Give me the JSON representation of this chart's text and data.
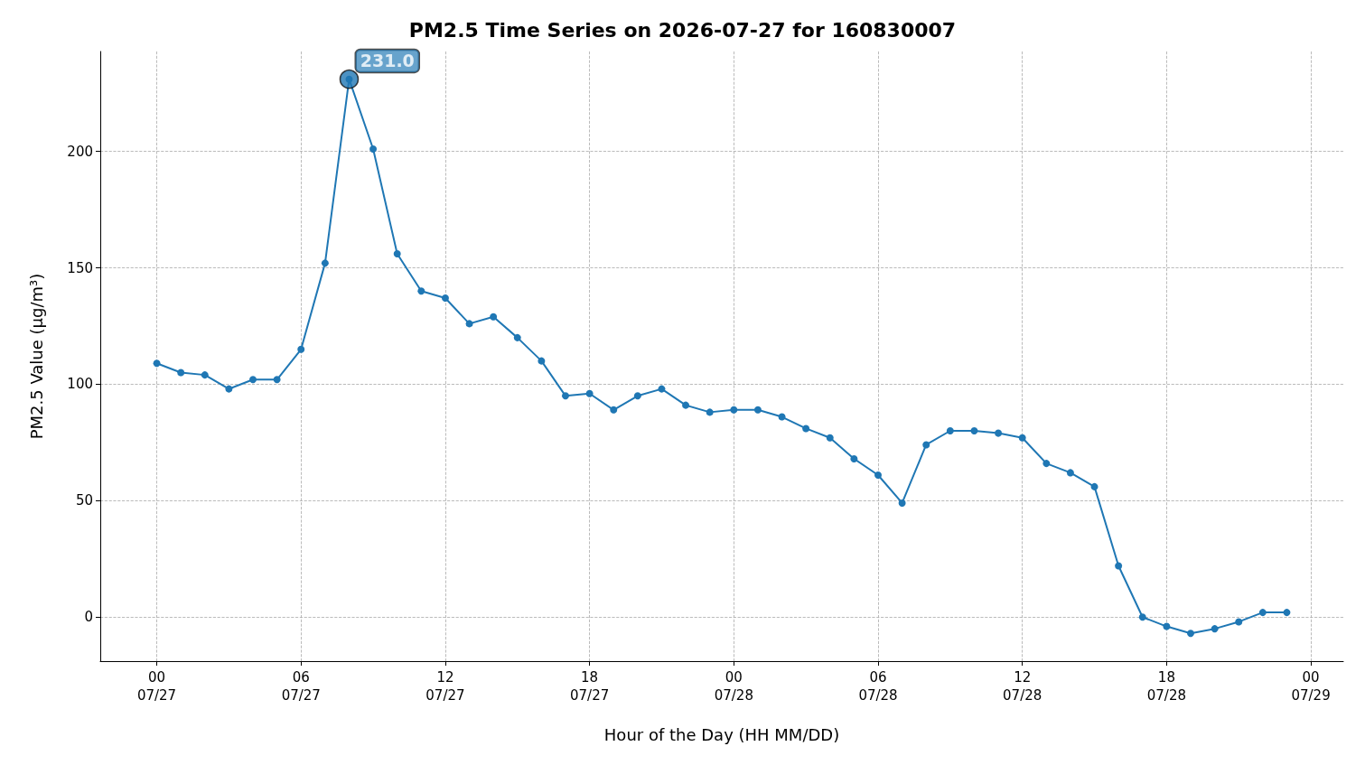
{
  "chart_data": {
    "type": "line",
    "title": "PM2.5 Time Series on 2026-07-27 for 160830007",
    "xlabel": "Hour of the Day (HH MM/DD)",
    "ylabel": "PM2.5 Value (μg/m³)",
    "x": [
      "2026-07-27T00:00",
      "2026-07-27T01:00",
      "2026-07-27T02:00",
      "2026-07-27T03:00",
      "2026-07-27T04:00",
      "2026-07-27T05:00",
      "2026-07-27T06:00",
      "2026-07-27T07:00",
      "2026-07-27T08:00",
      "2026-07-27T09:00",
      "2026-07-27T10:00",
      "2026-07-27T11:00",
      "2026-07-27T12:00",
      "2026-07-27T13:00",
      "2026-07-27T14:00",
      "2026-07-27T15:00",
      "2026-07-27T16:00",
      "2026-07-27T17:00",
      "2026-07-27T18:00",
      "2026-07-27T19:00",
      "2026-07-27T20:00",
      "2026-07-27T21:00",
      "2026-07-27T22:00",
      "2026-07-27T23:00",
      "2026-07-28T00:00",
      "2026-07-28T01:00",
      "2026-07-28T02:00",
      "2026-07-28T03:00",
      "2026-07-28T04:00",
      "2026-07-28T05:00",
      "2026-07-28T06:00",
      "2026-07-28T07:00",
      "2026-07-28T08:00",
      "2026-07-28T09:00",
      "2026-07-28T10:00",
      "2026-07-28T11:00",
      "2026-07-28T12:00",
      "2026-07-28T13:00",
      "2026-07-28T14:00",
      "2026-07-28T15:00",
      "2026-07-28T16:00",
      "2026-07-28T17:00",
      "2026-07-28T18:00",
      "2026-07-28T19:00",
      "2026-07-28T20:00",
      "2026-07-28T21:00",
      "2026-07-28T22:00",
      "2026-07-28T23:00"
    ],
    "series": [
      {
        "color": "#1f77b4",
        "values": [
          109,
          105,
          104,
          98,
          102,
          102,
          115,
          152,
          231,
          201,
          156,
          140,
          137,
          126,
          129,
          120,
          110,
          95,
          96,
          89,
          95,
          98,
          91,
          88,
          89,
          89,
          86,
          81,
          77,
          68,
          61,
          49,
          74,
          80,
          80,
          79,
          77,
          66,
          62,
          56,
          22,
          0,
          -4,
          -7,
          -5,
          -2,
          2,
          2
        ]
      }
    ],
    "annotations": [
      {
        "text": "231.0",
        "x": "2026-07-27T08:00",
        "y": 231
      }
    ],
    "xlim": [
      "2026-07-26T21:39",
      "2026-07-29T01:21"
    ],
    "xticks": [
      {
        "value": "2026-07-27T00:00",
        "label": "00\n07/27"
      },
      {
        "value": "2026-07-27T06:00",
        "label": "06\n07/27"
      },
      {
        "value": "2026-07-27T12:00",
        "label": "12\n07/27"
      },
      {
        "value": "2026-07-27T18:00",
        "label": "18\n07/27"
      },
      {
        "value": "2026-07-28T00:00",
        "label": "00\n07/28"
      },
      {
        "value": "2026-07-28T06:00",
        "label": "06\n07/28"
      },
      {
        "value": "2026-07-28T12:00",
        "label": "12\n07/28"
      },
      {
        "value": "2026-07-28T18:00",
        "label": "18\n07/28"
      },
      {
        "value": "2026-07-29T00:00",
        "label": "00\n07/29"
      }
    ],
    "ylim": [
      -18.9,
      242.9
    ],
    "yticks": [
      0,
      50,
      100,
      150,
      200
    ],
    "grid": true,
    "marker": "circle",
    "line_style": "solid"
  }
}
